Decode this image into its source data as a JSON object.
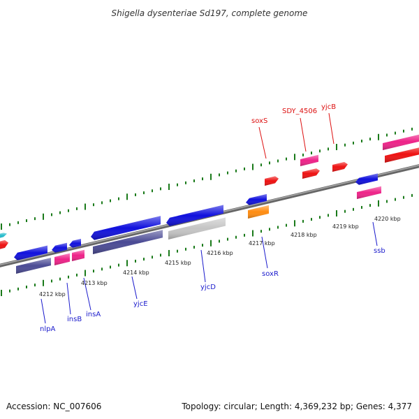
{
  "title": "Shigella dysenteriae Sd197, complete genome",
  "footer": {
    "accession": "Accession: NC_007606",
    "topology": "Topology: circular; Length: 4,369,232 bp; Genes: 4,377"
  },
  "colors": {
    "blue": "#1010dd",
    "navy": "#4a4a94",
    "red": "#ee1111",
    "pink": "#ee2288",
    "orange": "#ff8c10",
    "gray": "#c4c4c4",
    "cyan": "#22bbcc",
    "tick": "#1a7a1a",
    "backbone": "#777777",
    "label_blue": "#1a1acc",
    "label_red": "#dd1111"
  },
  "kbp_ticks": [
    {
      "label": "4212 kbp"
    },
    {
      "label": "4213 kbp"
    },
    {
      "label": "4214 kbp"
    },
    {
      "label": "4215 kbp"
    },
    {
      "label": "4216 kbp"
    },
    {
      "label": "4217 kbp"
    },
    {
      "label": "4218 kbp"
    },
    {
      "label": "4219 kbp"
    },
    {
      "label": "4220 kbp"
    }
  ],
  "gene_labels": [
    {
      "label": "nlpA",
      "color": "label_blue"
    },
    {
      "label": "insB",
      "color": "label_blue"
    },
    {
      "label": "insA",
      "color": "label_blue"
    },
    {
      "label": "yjcE",
      "color": "label_blue"
    },
    {
      "label": "yjcD",
      "color": "label_blue"
    },
    {
      "label": "soxR",
      "color": "label_blue"
    },
    {
      "label": "ssb",
      "color": "label_blue"
    },
    {
      "label": "soxS",
      "color": "label_red"
    },
    {
      "label": "SDY_4506",
      "color": "label_red"
    },
    {
      "label": "yjcB",
      "color": "label_red"
    }
  ]
}
